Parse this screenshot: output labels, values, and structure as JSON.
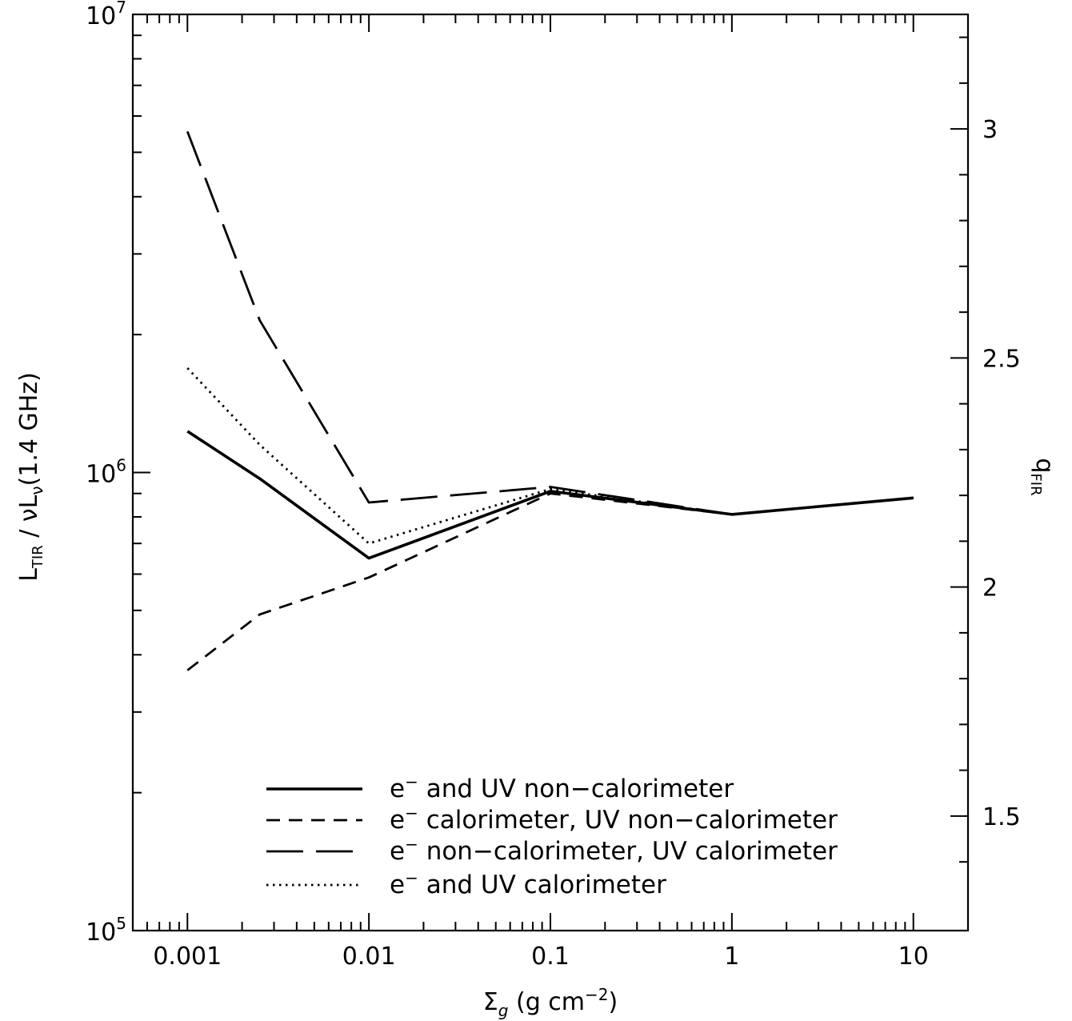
{
  "chart_data": {
    "type": "line",
    "x_scale": "log",
    "y_scale": "log",
    "xlim": [
      0.0005,
      20
    ],
    "ylim": [
      100000,
      10000000
    ],
    "right_axis": {
      "label_main": "q",
      "label_sub": "FIR",
      "ticks": [
        "1.5",
        "2",
        "2.5",
        "3"
      ],
      "tick_values": [
        1.5,
        2,
        2.5,
        3
      ],
      "relation": "q = log10(y) - 3.75"
    },
    "xlabel": {
      "main": "Σ",
      "sub": "g",
      "rest": " (g cm",
      "sup": "−2",
      "close": ")"
    },
    "ylabel": {
      "L": "L",
      "L_sub": "TIR",
      "mid": " / νL",
      "nu_sub": "ν",
      "tail": "(1.4 GHz)"
    },
    "x_tick_labels": [
      "0.001",
      "0.01",
      "0.1",
      "1",
      "10"
    ],
    "x_tick_values": [
      0.001,
      0.01,
      0.1,
      1,
      10
    ],
    "y_tick_labels": [
      {
        "base": "10",
        "exp": "5",
        "value": 100000
      },
      {
        "base": "10",
        "exp": "6",
        "value": 1000000
      },
      {
        "base": "10",
        "exp": "7",
        "value": 10000000
      }
    ],
    "grid": false,
    "legend_position": "bottom-right",
    "series": [
      {
        "name": "e⁻ and UV non-calorimeter",
        "legend_rest": " and UV non−calorimeter",
        "style": "solid",
        "x": [
          0.001,
          0.0025,
          0.01,
          0.1,
          1,
          10
        ],
        "y": [
          1230000,
          970000,
          650000,
          910000,
          810000,
          880000
        ]
      },
      {
        "name": "e⁻ calorimeter, UV non-calorimeter",
        "legend_rest": " calorimeter, UV non−calorimeter",
        "style": "short-dash",
        "x": [
          0.001,
          0.0025,
          0.01,
          0.1,
          1,
          10
        ],
        "y": [
          370000,
          490000,
          590000,
          900000,
          810000,
          880000
        ]
      },
      {
        "name": "e⁻ non-calorimeter, UV calorimeter",
        "legend_rest": " non−calorimeter, UV calorimeter",
        "style": "long-dash",
        "x": [
          0.001,
          0.0025,
          0.01,
          0.1,
          1,
          10
        ],
        "y": [
          5550000,
          2150000,
          860000,
          930000,
          810000,
          880000
        ]
      },
      {
        "name": "e⁻ and UV calorimeter",
        "legend_rest": " and UV calorimeter",
        "style": "dotted",
        "x": [
          0.001,
          0.0025,
          0.01,
          0.1,
          1,
          10
        ],
        "y": [
          1690000,
          1150000,
          700000,
          920000,
          810000,
          880000
        ]
      }
    ],
    "legend_prefix": "e",
    "legend_prefix_sup": "−",
    "colors": {
      "line": "#000000",
      "background": "#ffffff"
    }
  }
}
